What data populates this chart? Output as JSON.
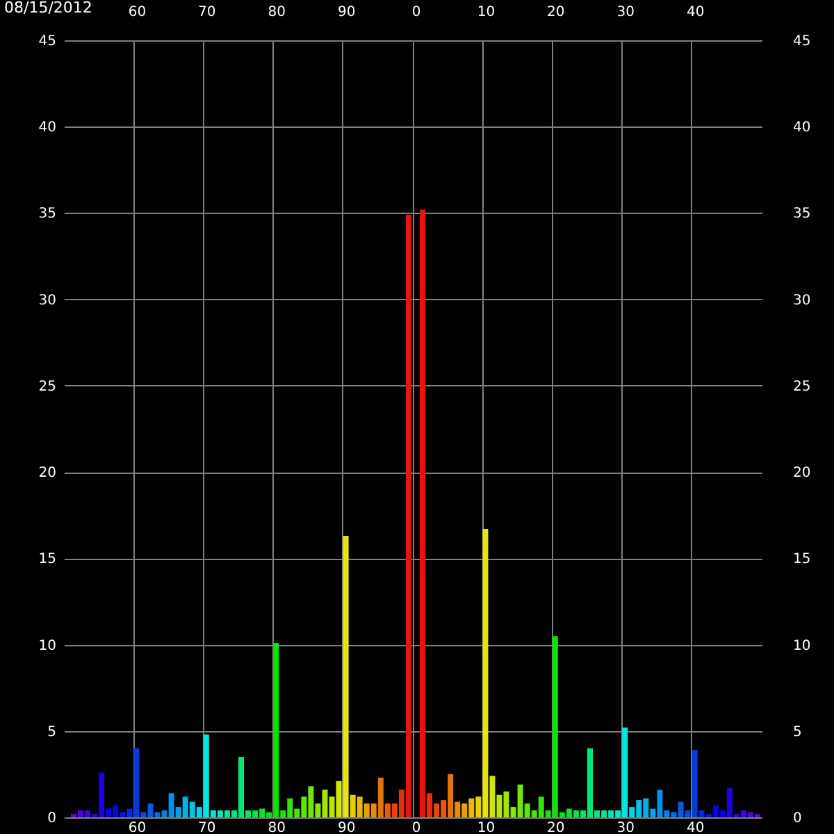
{
  "chart_data": {
    "type": "bar",
    "annotations": [
      "08/15/2012"
    ],
    "categories": [
      null,
      null,
      null,
      null,
      null,
      null,
      null,
      null,
      null,
      null,
      "60",
      null,
      null,
      null,
      null,
      null,
      null,
      null,
      null,
      null,
      "70",
      null,
      null,
      null,
      null,
      null,
      null,
      null,
      null,
      null,
      "80",
      null,
      null,
      null,
      null,
      null,
      null,
      null,
      null,
      null,
      "90",
      null,
      null,
      null,
      null,
      null,
      null,
      null,
      null,
      null,
      "0",
      null,
      null,
      null,
      null,
      null,
      null,
      null,
      null,
      null,
      "10",
      null,
      null,
      null,
      null,
      null,
      null,
      null,
      null,
      null,
      "20",
      null,
      null,
      null,
      null,
      null,
      null,
      null,
      null,
      null,
      "30",
      null,
      null,
      null,
      null,
      null,
      null,
      null,
      null,
      null,
      "40",
      null,
      null,
      null,
      null,
      null,
      null,
      null,
      null,
      null
    ],
    "values": [
      null,
      0.2,
      0.4,
      0.4,
      0.2,
      2.6,
      0.5,
      0.7,
      0.3,
      0.5,
      4.0,
      0.3,
      0.8,
      0.3,
      0.4,
      1.4,
      0.6,
      1.2,
      0.9,
      0.6,
      4.8,
      0.4,
      0.4,
      0.4,
      0.4,
      3.5,
      0.4,
      0.4,
      0.5,
      0.3,
      10.1,
      0.4,
      1.1,
      0.5,
      1.2,
      1.8,
      0.8,
      1.6,
      1.2,
      2.1,
      16.3,
      1.3,
      1.2,
      0.8,
      0.8,
      2.3,
      0.8,
      0.8,
      1.6,
      34.9,
      null,
      35.2,
      1.4,
      0.8,
      1.0,
      2.5,
      0.9,
      0.8,
      1.1,
      1.2,
      16.7,
      2.4,
      1.3,
      1.5,
      0.6,
      1.9,
      0.8,
      0.4,
      1.2,
      0.4,
      10.5,
      0.3,
      0.5,
      0.4,
      0.4,
      4.0,
      0.4,
      0.4,
      0.4,
      0.4,
      5.2,
      0.6,
      1.0,
      1.1,
      0.5,
      1.6,
      0.4,
      0.3,
      0.9,
      0.4,
      3.9,
      0.4,
      0.2,
      0.7,
      0.4,
      1.7,
      0.2,
      0.4,
      0.3,
      0.2
    ],
    "colors": [
      "#7300e6",
      "#6200e6",
      "#5100e6",
      "#3f00e6",
      "#2e00e6",
      "#1d00e6",
      "#0c00e6",
      "#0006e6",
      "#0017e6",
      "#0028e6",
      "#003ae6",
      "#004be6",
      "#005ce6",
      "#006de6",
      "#007fe6",
      "#0090e6",
      "#00a1e6",
      "#00b2e6",
      "#00c4e6",
      "#00d5e6",
      "#00e6e6",
      "#00e6cf",
      "#00e6b8",
      "#00e6a1",
      "#00e68a",
      "#00e673",
      "#00e65c",
      "#00e645",
      "#00e62e",
      "#00e617",
      "#00e600",
      "#17e600",
      "#2ee600",
      "#45e600",
      "#5ce600",
      "#73e600",
      "#8ae600",
      "#a1e600",
      "#b8e600",
      "#cfe600",
      "#e6e600",
      "#e6cf00",
      "#e6b800",
      "#e6a100",
      "#e68a00",
      "#e67300",
      "#e65c00",
      "#e64500",
      "#e62e00",
      "#e61700",
      "#e60000",
      "#e61700",
      "#e62e00",
      "#e64500",
      "#e65c00",
      "#e67300",
      "#e68a00",
      "#e6a100",
      "#e6b800",
      "#e6cf00",
      "#e6e600",
      "#cfe600",
      "#b8e600",
      "#a1e600",
      "#8ae600",
      "#73e600",
      "#5ce600",
      "#45e600",
      "#2ee600",
      "#17e600",
      "#00e600",
      "#00e617",
      "#00e62e",
      "#00e645",
      "#00e65c",
      "#00e673",
      "#00e68a",
      "#00e6a1",
      "#00e6b8",
      "#00e6cf",
      "#00e6e6",
      "#00d5e6",
      "#00c4e6",
      "#00b2e6",
      "#00a1e6",
      "#0090e6",
      "#007fe6",
      "#006de6",
      "#005ce6",
      "#004be6",
      "#003ae6",
      "#0028e6",
      "#0017e6",
      "#0006e6",
      "#0c00e6",
      "#1d00e6",
      "#2e00e6",
      "#3f00e6",
      "#5100e6",
      "#6200e6"
    ],
    "ylim": [
      0,
      45
    ],
    "yticks": [
      0,
      5,
      10,
      15,
      20,
      25,
      30,
      35,
      40,
      45
    ],
    "y2lim": [
      0,
      45
    ],
    "y2ticks": [
      0,
      5,
      10,
      15,
      20,
      25,
      30,
      35,
      40,
      45
    ],
    "grid": true
  }
}
